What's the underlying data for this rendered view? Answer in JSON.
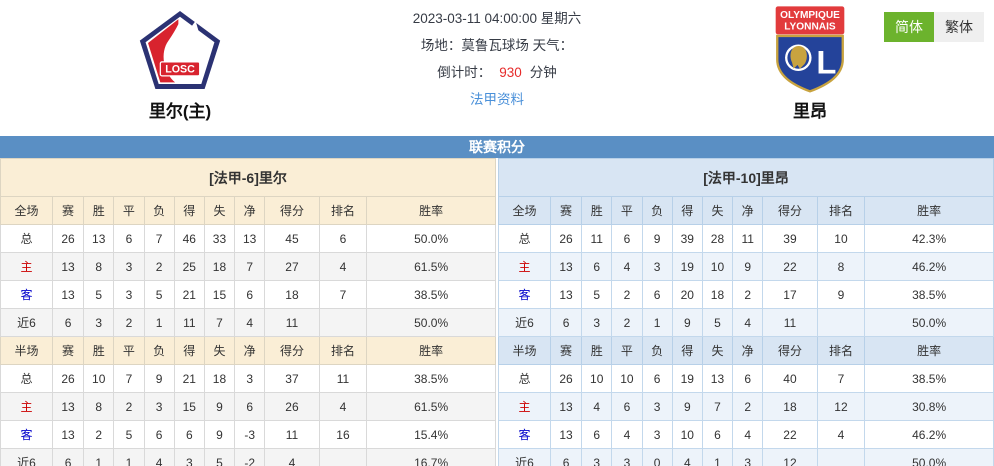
{
  "header": {
    "home": {
      "name": "里尔(主)",
      "crest": "losc-crest-icon",
      "crest_text": "LOSC"
    },
    "away": {
      "name": "里昂",
      "crest": "ol-crest-icon",
      "crest_line1": "OLYMPIQUE",
      "crest_line2": "LYONNAIS",
      "crest_letter": "L"
    },
    "match": {
      "datetime": "2023-03-11 04:00:00 星期六",
      "venue_label": "场地：",
      "venue": "莫鲁瓦球场",
      "weather_label": "天气：",
      "countdown_label": "倒计时：",
      "countdown_value": "930",
      "countdown_unit": "分钟",
      "league_link": "法甲资料"
    },
    "lang": {
      "simplified": "简体",
      "traditional": "繁体"
    }
  },
  "standings": {
    "title": "联赛积分",
    "columns_full": [
      "全场",
      "赛",
      "胜",
      "平",
      "负",
      "得",
      "失",
      "净",
      "得分",
      "排名",
      "胜率"
    ],
    "columns_half": [
      "半场",
      "赛",
      "胜",
      "平",
      "负",
      "得",
      "失",
      "净",
      "得分",
      "排名",
      "胜率"
    ],
    "home": {
      "team_header": "[法甲-6]里尔",
      "full": [
        [
          "总",
          "26",
          "13",
          "6",
          "7",
          "46",
          "33",
          "13",
          "45",
          "6",
          "50.0%"
        ],
        [
          "主",
          "13",
          "8",
          "3",
          "2",
          "25",
          "18",
          "7",
          "27",
          "4",
          "61.5%"
        ],
        [
          "客",
          "13",
          "5",
          "3",
          "5",
          "21",
          "15",
          "6",
          "18",
          "7",
          "38.5%"
        ],
        [
          "近6",
          "6",
          "3",
          "2",
          "1",
          "11",
          "7",
          "4",
          "11",
          "",
          "50.0%"
        ]
      ],
      "half": [
        [
          "总",
          "26",
          "10",
          "7",
          "9",
          "21",
          "18",
          "3",
          "37",
          "11",
          "38.5%"
        ],
        [
          "主",
          "13",
          "8",
          "2",
          "3",
          "15",
          "9",
          "6",
          "26",
          "4",
          "61.5%"
        ],
        [
          "客",
          "13",
          "2",
          "5",
          "6",
          "6",
          "9",
          "-3",
          "11",
          "16",
          "15.4%"
        ],
        [
          "近6",
          "6",
          "1",
          "1",
          "4",
          "3",
          "5",
          "-2",
          "4",
          "",
          "16.7%"
        ]
      ]
    },
    "away": {
      "team_header": "[法甲-10]里昂",
      "full": [
        [
          "总",
          "26",
          "11",
          "6",
          "9",
          "39",
          "28",
          "11",
          "39",
          "10",
          "42.3%"
        ],
        [
          "主",
          "13",
          "6",
          "4",
          "3",
          "19",
          "10",
          "9",
          "22",
          "8",
          "46.2%"
        ],
        [
          "客",
          "13",
          "5",
          "2",
          "6",
          "20",
          "18",
          "2",
          "17",
          "9",
          "38.5%"
        ],
        [
          "近6",
          "6",
          "3",
          "2",
          "1",
          "9",
          "5",
          "4",
          "11",
          "",
          "50.0%"
        ]
      ],
      "half": [
        [
          "总",
          "26",
          "10",
          "10",
          "6",
          "19",
          "13",
          "6",
          "40",
          "7",
          "38.5%"
        ],
        [
          "主",
          "13",
          "4",
          "6",
          "3",
          "9",
          "7",
          "2",
          "18",
          "12",
          "30.8%"
        ],
        [
          "客",
          "13",
          "6",
          "4",
          "3",
          "10",
          "6",
          "4",
          "22",
          "4",
          "46.2%"
        ],
        [
          "近6",
          "6",
          "3",
          "3",
          "0",
          "4",
          "1",
          "3",
          "12",
          "",
          "50.0%"
        ]
      ]
    }
  },
  "colors": {
    "title_bar": "#5a8fc4",
    "home_header_bg": "#faeed6",
    "away_header_bg": "#d8e5f3",
    "home_row_alt": "#f4f4f4",
    "away_row_alt": "#edf3fa",
    "home_label": "#cc0000",
    "away_label": "#0000cb",
    "countdown": "#e62b2b",
    "link": "#4a90d9",
    "lang_active": "#6cb32d"
  }
}
